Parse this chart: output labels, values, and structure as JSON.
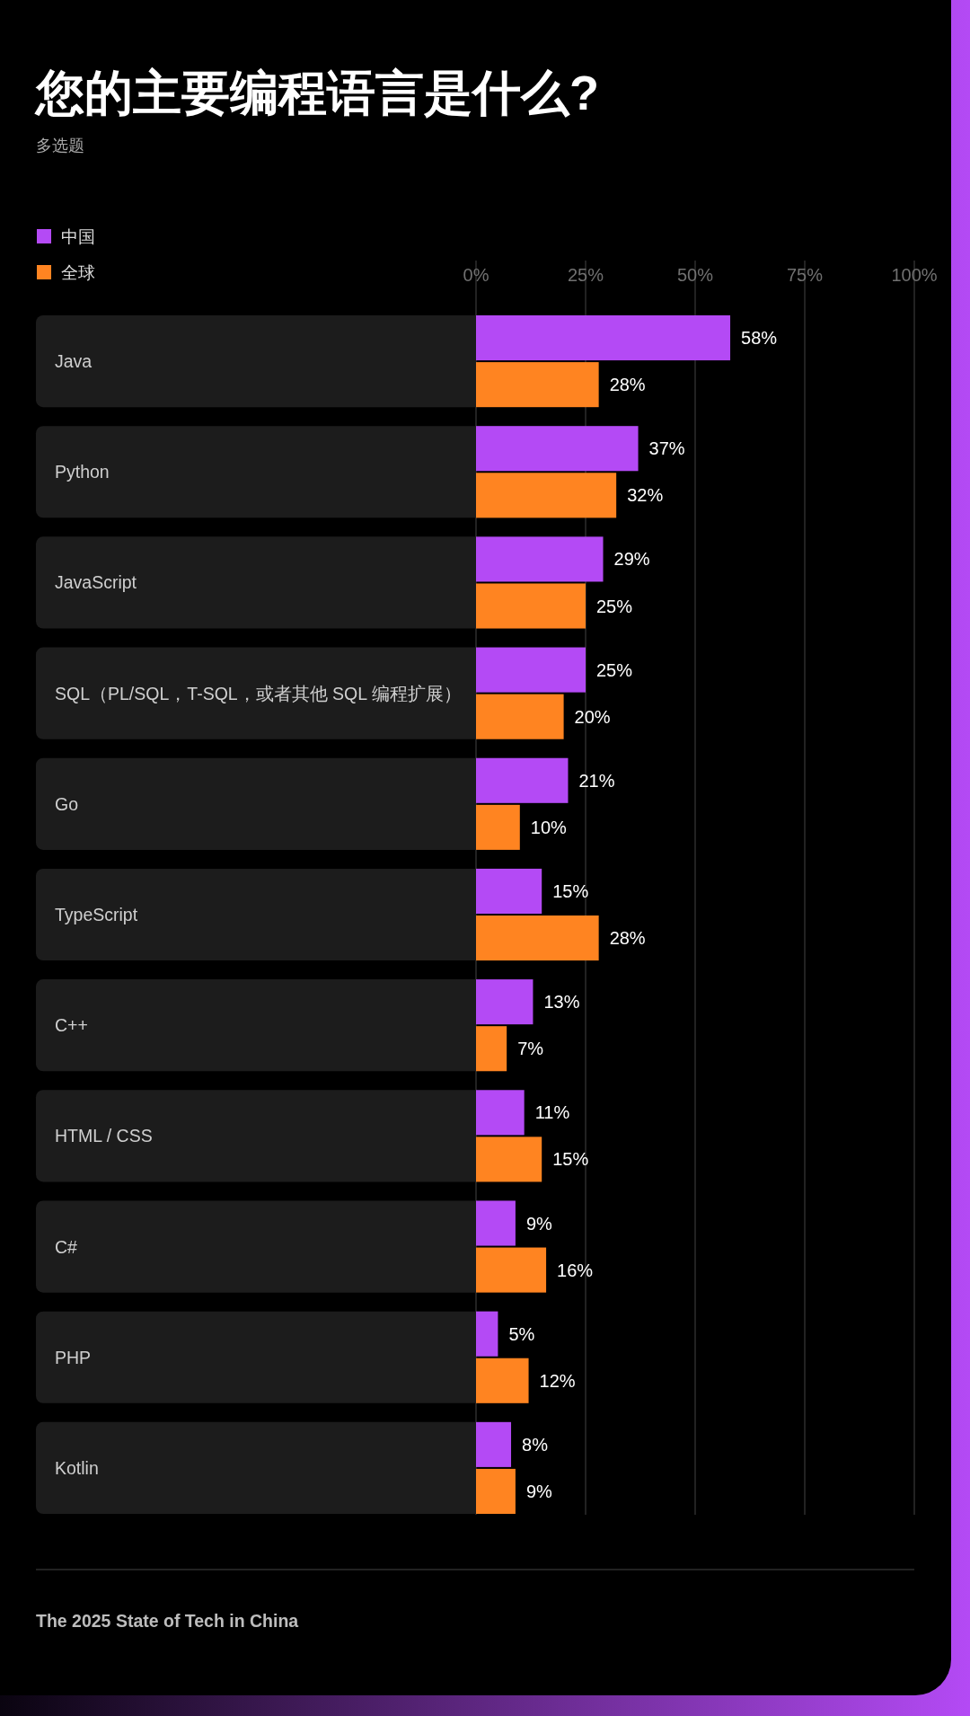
{
  "chart_data": {
    "type": "bar",
    "orientation": "horizontal",
    "title": "您的主要编程语言是什么?",
    "subtitle": "多选题",
    "categories": [
      "Java",
      "Python",
      "JavaScript",
      "SQL（PL/SQL，T-SQL，或者其他 SQL 编程扩展）",
      "Go",
      "TypeScript",
      "C++",
      "HTML / CSS",
      "C#",
      "PHP",
      "Kotlin"
    ],
    "series": [
      {
        "name": "中国",
        "color": "#b44af5",
        "values": [
          58,
          37,
          29,
          25,
          21,
          15,
          13,
          11,
          9,
          5,
          8
        ],
        "value_labels": [
          "58%",
          "37%",
          "29%",
          "25%",
          "21%",
          "15%",
          "13%",
          "11%",
          "9%",
          "5%",
          "8%"
        ]
      },
      {
        "name": "全球",
        "color": "#ff8421",
        "values": [
          28,
          32,
          25,
          20,
          10,
          28,
          7,
          15,
          16,
          12,
          9
        ],
        "value_labels": [
          "28%",
          "32%",
          "25%",
          "20%",
          "10%",
          "28%",
          "7%",
          "15%",
          "16%",
          "12%",
          "9%"
        ]
      }
    ],
    "xlim": [
      0,
      100
    ],
    "xticks": [
      {
        "value": 0,
        "label": "0%"
      },
      {
        "value": 25,
        "label": "25%"
      },
      {
        "value": 50,
        "label": "50%"
      },
      {
        "value": 75,
        "label": "75%"
      },
      {
        "value": 100,
        "label": "100%"
      }
    ],
    "grid": "x",
    "legend": "top left",
    "annotations": [
      "The 2025 State of Tech in China"
    ]
  }
}
